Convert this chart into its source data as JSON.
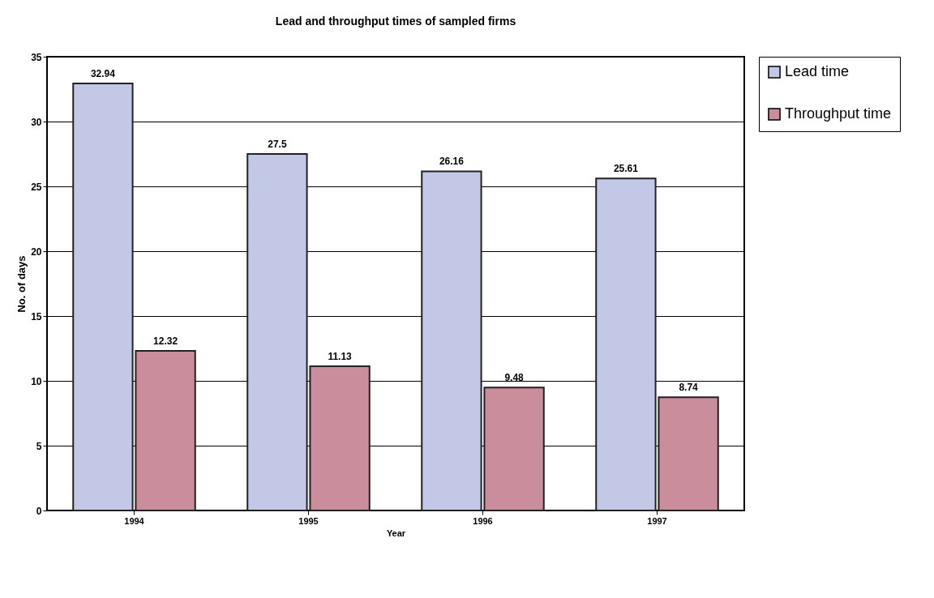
{
  "chart_data": {
    "type": "bar",
    "title": "Lead and throughput times of sampled firms",
    "xlabel": "Year",
    "ylabel": "No. of days",
    "categories": [
      "1994",
      "1995",
      "1996",
      "1997"
    ],
    "series": [
      {
        "name": "Lead time",
        "color": "#c3c8e6",
        "values": [
          32.94,
          27.5,
          26.16,
          25.61
        ]
      },
      {
        "name": "Throughput time",
        "color": "#c98d9c",
        "values": [
          12.32,
          11.13,
          9.48,
          8.74
        ]
      }
    ],
    "ylim": [
      0,
      35
    ],
    "yticks": [
      0,
      5,
      10,
      15,
      20,
      25,
      30,
      35
    ],
    "grid": "y",
    "legend": "right",
    "data_labels": true
  }
}
